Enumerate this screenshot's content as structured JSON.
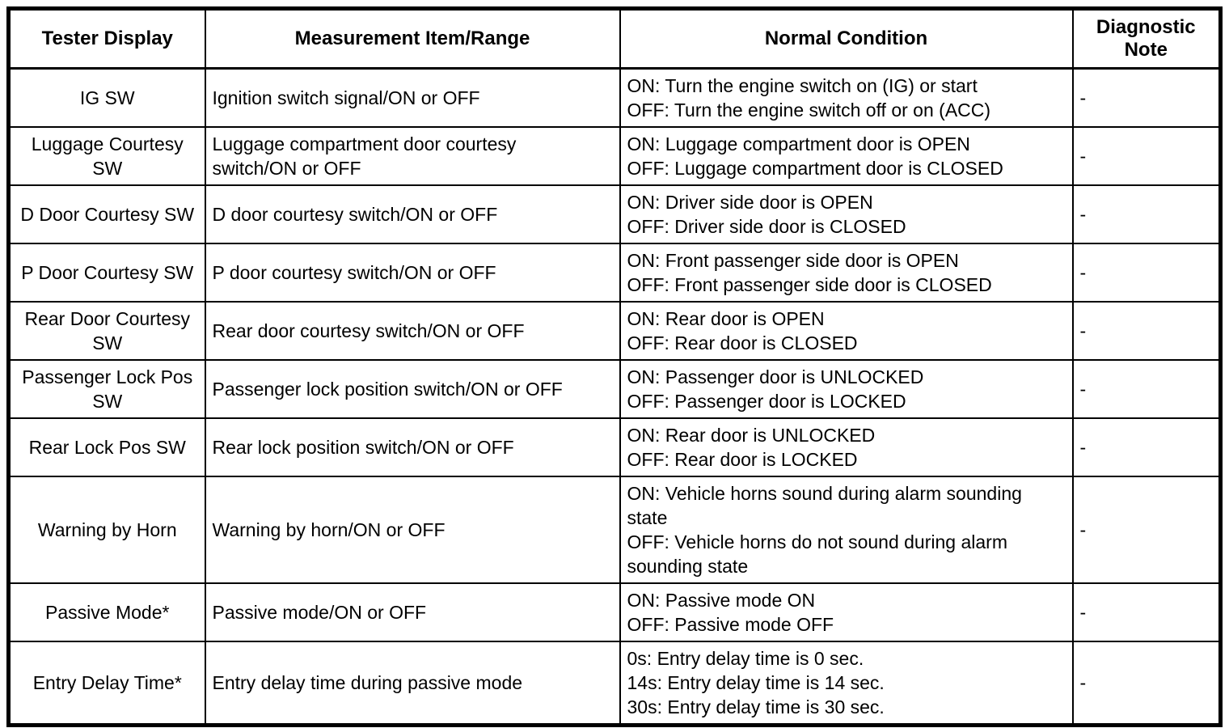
{
  "table": {
    "headers": [
      {
        "label": "Tester Display"
      },
      {
        "label": "Measurement Item/Range"
      },
      {
        "label": "Normal Condition"
      },
      {
        "label": "Diagnostic Note"
      }
    ],
    "rows": [
      {
        "tester_display": "IG SW",
        "measurement_item_range": "Ignition switch signal/ON or OFF",
        "normal_condition": "ON: Turn the engine switch on (IG) or start\nOFF: Turn the engine switch off or on (ACC)",
        "diagnostic_note": "-"
      },
      {
        "tester_display": "Luggage Courtesy\nSW",
        "measurement_item_range": "Luggage compartment door courtesy\nswitch/ON or OFF",
        "normal_condition": "ON: Luggage compartment door is OPEN\nOFF: Luggage compartment door is CLOSED",
        "diagnostic_note": "-"
      },
      {
        "tester_display": "D Door Courtesy SW",
        "measurement_item_range": "D door courtesy switch/ON or OFF",
        "normal_condition": "ON: Driver side door is OPEN\nOFF: Driver side door is CLOSED",
        "diagnostic_note": "-"
      },
      {
        "tester_display": "P Door Courtesy SW",
        "measurement_item_range": "P door courtesy switch/ON or OFF",
        "normal_condition": "ON: Front passenger side door is OPEN\nOFF: Front passenger side door is CLOSED",
        "diagnostic_note": "-"
      },
      {
        "tester_display": "Rear Door Courtesy\nSW",
        "measurement_item_range": "Rear door courtesy switch/ON or OFF",
        "normal_condition": "ON: Rear door is OPEN\nOFF: Rear door is CLOSED",
        "diagnostic_note": "-"
      },
      {
        "tester_display": "Passenger Lock Pos\nSW",
        "measurement_item_range": "Passenger lock position switch/ON or OFF",
        "normal_condition": "ON: Passenger door is UNLOCKED\nOFF: Passenger door is LOCKED",
        "diagnostic_note": "-"
      },
      {
        "tester_display": "Rear Lock Pos SW",
        "measurement_item_range": "Rear lock position switch/ON or OFF",
        "normal_condition": "ON: Rear door is UNLOCKED\nOFF: Rear door is LOCKED",
        "diagnostic_note": "-"
      },
      {
        "tester_display": "Warning by Horn",
        "measurement_item_range": "Warning by horn/ON or OFF",
        "normal_condition": "ON: Vehicle horns sound during alarm sounding\nstate\nOFF: Vehicle horns do not sound during alarm\nsounding state",
        "diagnostic_note": "-"
      },
      {
        "tester_display": "Passive Mode*",
        "measurement_item_range": "Passive mode/ON or OFF",
        "normal_condition": "ON: Passive mode ON\nOFF: Passive mode OFF",
        "diagnostic_note": "-"
      },
      {
        "tester_display": "Entry Delay Time*",
        "measurement_item_range": "Entry delay time during passive mode",
        "normal_condition": "0s: Entry delay time is 0 sec.\n14s: Entry delay time is 14 sec.\n30s: Entry delay time is 30 sec.",
        "diagnostic_note": "-"
      }
    ],
    "colors": {
      "border": "#000000",
      "text": "#000000",
      "background": "#ffffff"
    }
  }
}
